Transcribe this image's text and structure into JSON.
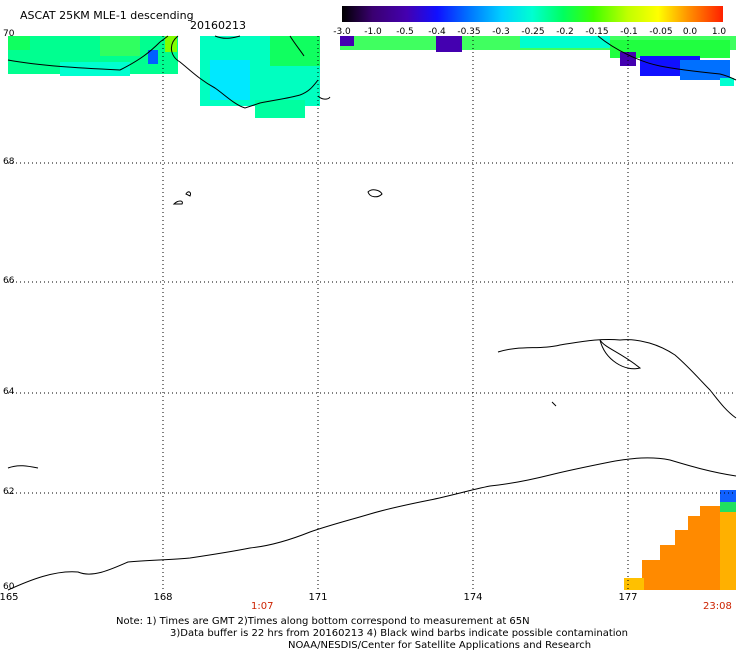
{
  "header": {
    "title": "ASCAT 25KM MLE-1 descending",
    "date": "20160213"
  },
  "colorbar": {
    "labels": [
      "-3.0",
      "-1.0",
      "-0.5",
      "-0.4",
      "-0.35",
      "-0.3",
      "-0.25",
      "-0.2",
      "-0.15",
      "-0.1",
      "-0.05",
      "0.0",
      "1.0"
    ]
  },
  "axes": {
    "lat_labels": [
      "70",
      "68",
      "66",
      "64",
      "62",
      "60"
    ],
    "lon_labels": [
      "165",
      "168",
      "171",
      "174",
      "177"
    ]
  },
  "times": {
    "start": "1:07",
    "end": "23:08"
  },
  "notes": {
    "line1": "Note: 1) Times are GMT 2)Times along bottom correspond to measurement at 65N",
    "line2": "3)Data buffer is 22 hrs from 20160213 4) Black wind barbs indicate possible contamination",
    "line3": "NOAA/NESDIS/Center for Satellite Applications and Research"
  },
  "colors": {
    "time_label": "#cc2200",
    "grid": "#000000"
  }
}
